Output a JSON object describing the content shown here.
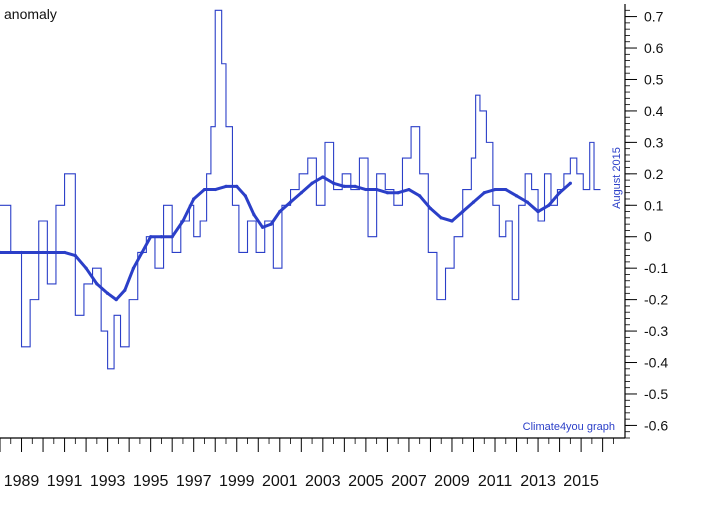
{
  "chart_data": {
    "type": "line",
    "ylabel": "anomaly",
    "side_label": "August 2015",
    "credit": "Climate4you graph",
    "xlim": [
      1988.0,
      2016.9
    ],
    "ylim": [
      -0.64,
      0.74
    ],
    "x_ticks": [
      1989,
      1991,
      1993,
      1995,
      1997,
      1999,
      2001,
      2003,
      2005,
      2007,
      2009,
      2011,
      2013,
      2015
    ],
    "y_ticks": [
      {
        "v": 0.7,
        "t": "0.7"
      },
      {
        "v": 0.6,
        "t": "0.6"
      },
      {
        "v": 0.5,
        "t": "0.5"
      },
      {
        "v": 0.4,
        "t": "0.4"
      },
      {
        "v": 0.3,
        "t": "0.3"
      },
      {
        "v": 0.2,
        "t": "0.2"
      },
      {
        "v": 0.1,
        "t": "0.1"
      },
      {
        "v": 0.0,
        "t": "0"
      },
      {
        "v": -0.1,
        "t": "-0.1"
      },
      {
        "v": -0.2,
        "t": "-0.2"
      },
      {
        "v": -0.3,
        "t": "-0.3"
      },
      {
        "v": -0.4,
        "t": "-0.4"
      },
      {
        "v": -0.5,
        "t": "-0.5"
      },
      {
        "v": -0.6,
        "t": "-0.6"
      }
    ],
    "grid": false,
    "series": [
      {
        "id": "monthly",
        "style": "step",
        "color": "#2b3fc8",
        "x": [
          1988.0,
          1988.5,
          1989.0,
          1989.4,
          1989.8,
          1990.2,
          1990.6,
          1991.0,
          1991.5,
          1991.9,
          1992.3,
          1992.7,
          1993.0,
          1993.3,
          1993.6,
          1994.0,
          1994.4,
          1994.8,
          1995.2,
          1995.6,
          1996.0,
          1996.4,
          1996.8,
          1997.0,
          1997.3,
          1997.6,
          1997.8,
          1998.0,
          1998.3,
          1998.5,
          1998.8,
          1999.1,
          1999.5,
          1999.9,
          2000.3,
          2000.7,
          2001.1,
          2001.5,
          2001.9,
          2002.3,
          2002.7,
          2003.1,
          2003.5,
          2003.9,
          2004.3,
          2004.7,
          2005.1,
          2005.5,
          2005.9,
          2006.3,
          2006.7,
          2007.1,
          2007.5,
          2007.9,
          2008.3,
          2008.7,
          2009.1,
          2009.5,
          2009.9,
          2010.1,
          2010.3,
          2010.6,
          2010.9,
          2011.2,
          2011.5,
          2011.8,
          2012.1,
          2012.4,
          2012.7,
          2013.0,
          2013.3,
          2013.6,
          2013.9,
          2014.2,
          2014.5,
          2014.8,
          2015.1,
          2015.4,
          2015.6
        ],
        "y": [
          0.1,
          -0.05,
          -0.35,
          -0.2,
          0.05,
          -0.15,
          0.1,
          0.2,
          -0.25,
          -0.15,
          -0.1,
          -0.3,
          -0.42,
          -0.25,
          -0.35,
          -0.2,
          -0.05,
          0.0,
          -0.1,
          0.1,
          -0.05,
          0.05,
          0.1,
          0.0,
          0.05,
          0.2,
          0.35,
          0.72,
          0.55,
          0.35,
          0.1,
          -0.05,
          0.05,
          -0.05,
          0.05,
          -0.1,
          0.1,
          0.15,
          0.2,
          0.25,
          0.1,
          0.3,
          0.15,
          0.2,
          0.15,
          0.25,
          0.0,
          0.2,
          0.15,
          0.1,
          0.25,
          0.35,
          0.2,
          -0.05,
          -0.2,
          -0.1,
          0.0,
          0.15,
          0.25,
          0.45,
          0.4,
          0.3,
          0.1,
          0.0,
          0.05,
          -0.2,
          0.1,
          0.2,
          0.15,
          0.05,
          0.2,
          0.1,
          0.15,
          0.2,
          0.25,
          0.2,
          0.15,
          0.3,
          0.15
        ]
      },
      {
        "id": "running-mean",
        "style": "line",
        "color": "#2b3fc8",
        "x": [
          1988.0,
          1989.0,
          1990.0,
          1991.0,
          1991.5,
          1992.0,
          1992.5,
          1993.0,
          1993.4,
          1993.8,
          1994.2,
          1994.6,
          1995.0,
          1995.5,
          1996.0,
          1996.5,
          1997.0,
          1997.5,
          1998.0,
          1998.5,
          1999.0,
          1999.4,
          1999.8,
          2000.2,
          2000.6,
          2001.0,
          2001.5,
          2002.0,
          2002.5,
          2003.0,
          2003.5,
          2004.0,
          2004.5,
          2005.0,
          2005.5,
          2006.0,
          2006.5,
          2007.0,
          2007.5,
          2008.0,
          2008.5,
          2009.0,
          2009.5,
          2010.0,
          2010.5,
          2011.0,
          2011.5,
          2012.0,
          2012.5,
          2013.0,
          2013.5,
          2014.0,
          2014.5
        ],
        "y": [
          -0.05,
          -0.05,
          -0.05,
          -0.05,
          -0.06,
          -0.1,
          -0.15,
          -0.18,
          -0.2,
          -0.17,
          -0.1,
          -0.05,
          0.0,
          0.0,
          0.0,
          0.05,
          0.12,
          0.15,
          0.15,
          0.16,
          0.16,
          0.13,
          0.07,
          0.03,
          0.04,
          0.08,
          0.11,
          0.14,
          0.17,
          0.19,
          0.17,
          0.16,
          0.16,
          0.15,
          0.15,
          0.14,
          0.14,
          0.15,
          0.13,
          0.09,
          0.06,
          0.05,
          0.08,
          0.11,
          0.14,
          0.15,
          0.15,
          0.13,
          0.11,
          0.08,
          0.1,
          0.14,
          0.17
        ]
      }
    ]
  }
}
